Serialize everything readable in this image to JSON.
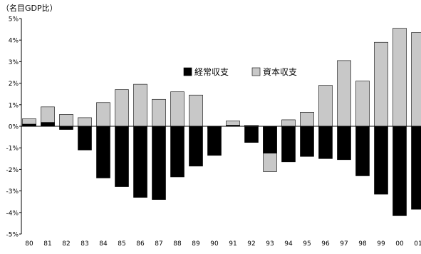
{
  "chart_data": {
    "type": "bar",
    "stacked": false,
    "ylabel": "（名目GDP比）",
    "ylim": [
      -5,
      5
    ],
    "yticks": [
      "5%",
      "4%",
      "3%",
      "2%",
      "1%",
      "0%",
      "-1%",
      "-2%",
      "-3%",
      "-4%",
      "-5%"
    ],
    "ytick_values": [
      5,
      4,
      3,
      2,
      1,
      0,
      -1,
      -2,
      -3,
      -4,
      -5
    ],
    "grid": false,
    "legend_position": "top-center-right",
    "categories": [
      "80",
      "81",
      "82",
      "83",
      "84",
      "85",
      "86",
      "87",
      "88",
      "89",
      "90",
      "91",
      "92",
      "93",
      "94",
      "95",
      "96",
      "97",
      "98",
      "99",
      "00",
      "01"
    ],
    "series": [
      {
        "name": "資本収支",
        "color": "#c8c8c8",
        "values": [
          0.35,
          0.9,
          0.55,
          0.4,
          1.1,
          1.7,
          1.95,
          1.25,
          1.6,
          1.45,
          -0.1,
          0.25,
          0.05,
          -2.1,
          0.3,
          0.65,
          1.9,
          3.05,
          2.1,
          3.9,
          4.55,
          4.35
        ]
      },
      {
        "name": "経常収支",
        "color": "#000000",
        "values": [
          0.1,
          0.18,
          -0.15,
          -1.1,
          -2.4,
          -2.8,
          -3.3,
          -3.4,
          -2.35,
          -1.85,
          -1.35,
          0.05,
          -0.75,
          -1.25,
          -1.65,
          -1.4,
          -1.5,
          -1.55,
          -2.3,
          -3.15,
          -4.15,
          -3.85
        ]
      }
    ]
  }
}
